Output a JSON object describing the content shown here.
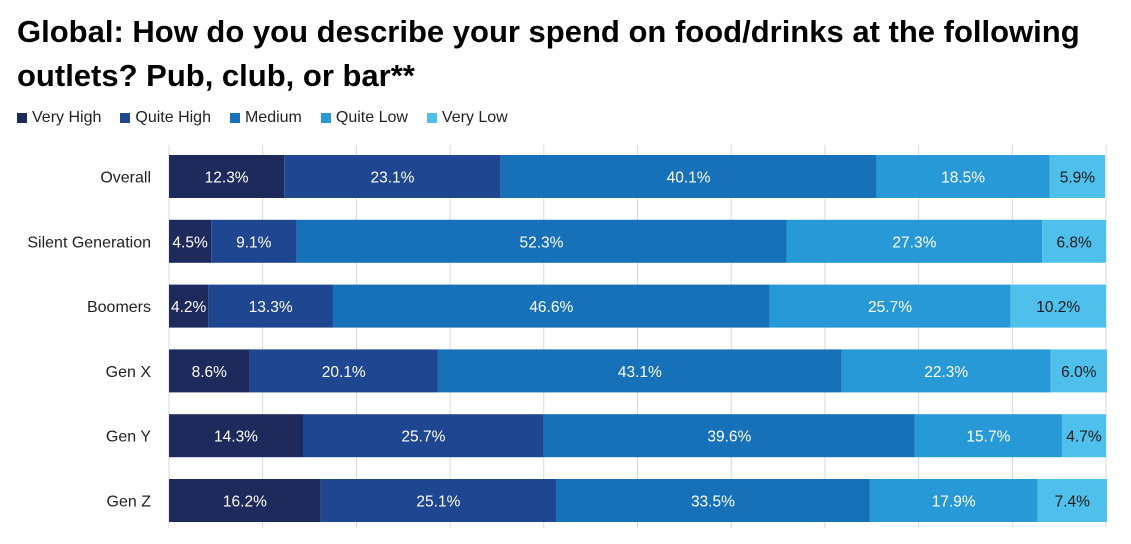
{
  "chart_data": {
    "type": "bar",
    "orientation": "horizontal",
    "stacked": true,
    "title": "Global: How do you describe your spend on food/drinks at the following outlets? Pub, club, or bar**",
    "categories": [
      "Overall",
      "Silent Generation",
      "Boomers",
      "Gen X",
      "Gen Y",
      "Gen Z"
    ],
    "series": [
      {
        "name": "Very High",
        "color": "#1f2a5c",
        "values": [
          12.3,
          4.5,
          4.2,
          8.6,
          14.3,
          16.2
        ],
        "labels": [
          "12.3%",
          "4.5%",
          "4.2%",
          "8.6%",
          "14.3%",
          "16.2%"
        ]
      },
      {
        "name": "Quite High",
        "color": "#1f4690",
        "values": [
          23.1,
          9.1,
          13.3,
          20.1,
          25.7,
          25.1
        ],
        "labels": [
          "23.1%",
          "9.1%",
          "13.3%",
          "20.1%",
          "25.7%",
          "25.1%"
        ]
      },
      {
        "name": "Medium",
        "color": "#1671b9",
        "values": [
          40.1,
          52.3,
          46.6,
          43.1,
          39.6,
          33.5
        ],
        "labels": [
          "40.1%",
          "52.3%",
          "46.6%",
          "43.1%",
          "39.6%",
          "33.5%"
        ]
      },
      {
        "name": "Quite Low",
        "color": "#2699d6",
        "values": [
          18.5,
          27.3,
          25.7,
          22.3,
          15.7,
          17.9
        ],
        "labels": [
          "18.5%",
          "27.3%",
          "25.7%",
          "22.3%",
          "15.7%",
          "17.9%"
        ]
      },
      {
        "name": "Very Low",
        "color": "#4fc0ec",
        "values": [
          5.9,
          6.8,
          10.2,
          6.0,
          4.7,
          7.4
        ],
        "labels": [
          "5.9%",
          "6.8%",
          "10.2%",
          "6.0%",
          "4.7%",
          "7.4%"
        ]
      }
    ],
    "xlim": [
      0,
      100
    ],
    "grid": true,
    "legend": "top-left"
  }
}
